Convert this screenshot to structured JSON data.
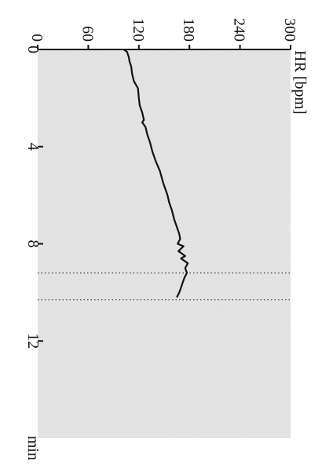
{
  "chart_data": {
    "type": "line",
    "title": "",
    "xlabel": "min",
    "ylabel": "HR [bpm]",
    "xlim": [
      0,
      16
    ],
    "ylim": [
      0,
      300
    ],
    "x_ticks": [
      0,
      4,
      8,
      12
    ],
    "y_ticks": [
      0,
      60,
      120,
      180,
      240,
      300
    ],
    "x_tick_labels": [
      "0",
      "4",
      "8",
      "12"
    ],
    "y_tick_labels": [
      "0",
      "60",
      "120",
      "180",
      "240",
      "300"
    ],
    "grid": false,
    "legend": "none",
    "vertical_reference_lines_x": [
      9.2,
      10.3
    ],
    "colors": {
      "background": "#ffffff",
      "plot_area": "#e9e9e9",
      "axis": "#111111",
      "series": "#111111",
      "reference_line": "#555555"
    },
    "series": [
      {
        "x": [
          0,
          0.1,
          0.2,
          0.3,
          0.5,
          0.7,
          1.0,
          1.3,
          1.6,
          2.0,
          2.3,
          2.6,
          2.9,
          3.0,
          3.2,
          3.5,
          3.8,
          4.2,
          4.6,
          5.0,
          5.5,
          6.0,
          6.3,
          6.6,
          7.0,
          7.3,
          7.6,
          7.8,
          8.0,
          8.1,
          8.3,
          8.5,
          8.6,
          8.8,
          9.0,
          9.2,
          9.4,
          9.6,
          9.8,
          10.0,
          10.2
        ],
        "y": [
          102,
          106,
          107,
          108,
          109,
          111,
          112,
          114,
          119,
          120,
          121,
          124,
          126,
          124,
          128,
          130,
          133,
          136,
          140,
          145,
          149,
          154,
          156,
          159,
          162,
          165,
          168,
          169,
          166,
          173,
          167,
          175,
          170,
          178,
          175,
          177,
          174,
          172,
          170,
          168,
          165
        ]
      }
    ]
  }
}
